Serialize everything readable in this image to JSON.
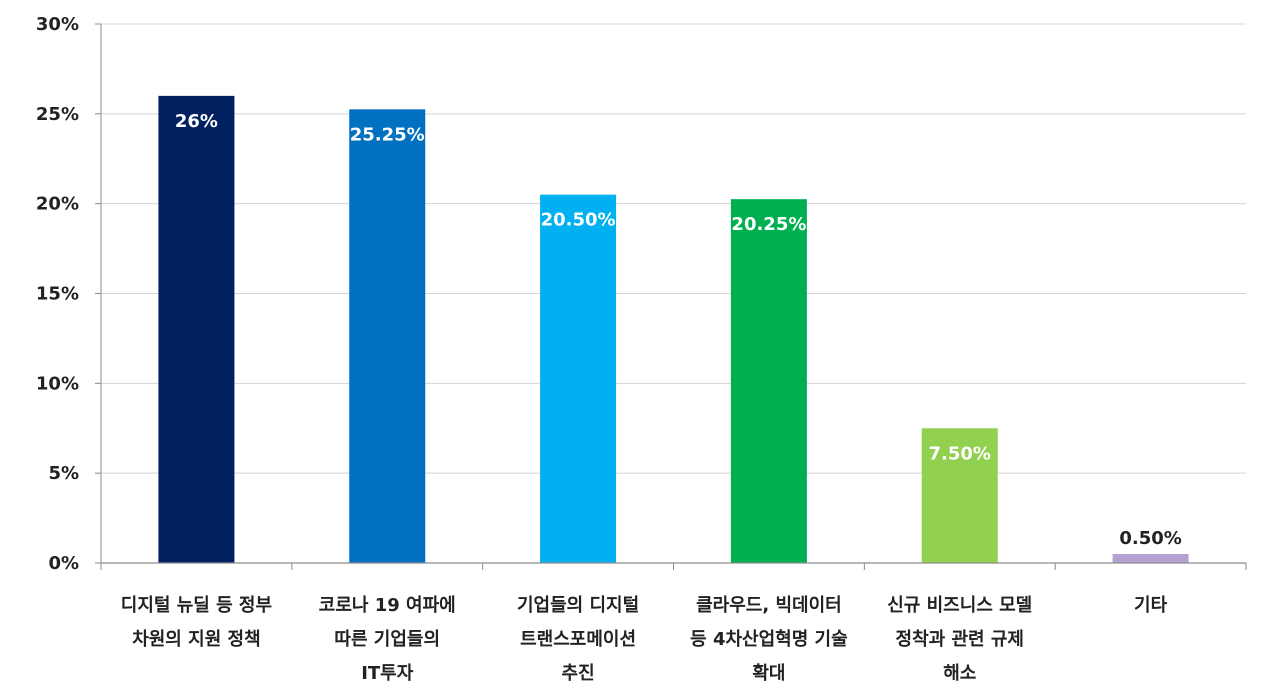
{
  "chart_data": {
    "type": "bar",
    "title": "",
    "xlabel": "",
    "ylabel": "",
    "ylim": [
      0,
      30
    ],
    "yticks": [
      "0%",
      "5%",
      "10%",
      "15%",
      "20%",
      "25%",
      "30%"
    ],
    "grid": true,
    "legend": "none",
    "categories": [
      [
        "디지털 뉴딜 등 정부",
        "차원의 지원 정책"
      ],
      [
        "코로나 19 여파에",
        "따른 기업들의",
        "IT투자"
      ],
      [
        "기업들의 디지털",
        "트랜스포메이션",
        "추진"
      ],
      [
        "클라우드, 빅데이터",
        "등 4차산업혁명 기술",
        "확대"
      ],
      [
        "신규 비즈니스 모델",
        "정착과 관련 규제",
        "해소"
      ],
      [
        "기타"
      ]
    ],
    "values": [
      26,
      25.25,
      20.5,
      20.25,
      7.5,
      0.5
    ],
    "data_labels": [
      "26%",
      "25.25%",
      "20.50%",
      "20.25%",
      "7.50%",
      "0.50%"
    ],
    "colors": [
      "#002060",
      "#0070C0",
      "#00B0F0",
      "#00B050",
      "#92D050",
      "#B4A0D2"
    ],
    "label_colors": [
      "#ffffff",
      "#ffffff",
      "#ffffff",
      "#ffffff",
      "#ffffff",
      "#222222"
    ]
  }
}
